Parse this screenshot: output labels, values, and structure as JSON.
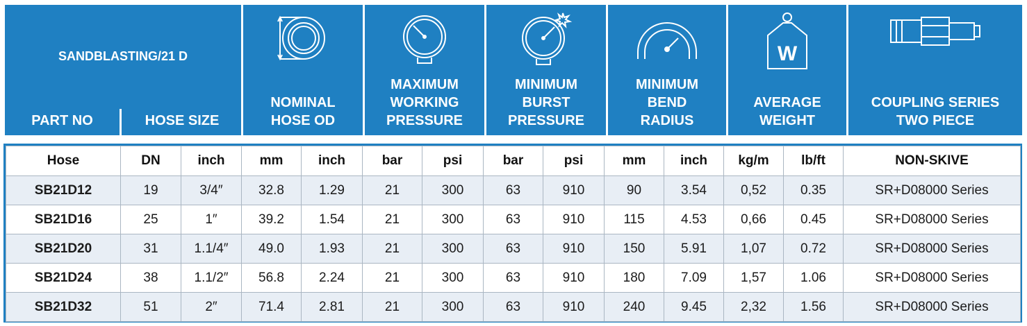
{
  "header": {
    "title": "SANDBLASTING/21 D",
    "part_no_label": "PART NO",
    "hose_size_label": "HOSE SIZE",
    "nominal_od_label": "NOMINAL\nHOSE OD",
    "max_wp_label": "MAXIMUM\nWORKING\nPRESSURE",
    "min_bp_label": "MINIMUM\nBURST\nPRESSURE",
    "min_br_label": "MINIMUM\nBEND\nRADIUS",
    "avg_weight_label": "AVERAGE\nWEIGHT",
    "coupling_label": "COUPLING SERIES\nTWO PIECE",
    "weight_icon_letter": "W"
  },
  "units": [
    "Hose",
    "DN",
    "inch",
    "mm",
    "inch",
    "bar",
    "psi",
    "bar",
    "psi",
    "mm",
    "inch",
    "kg/m",
    "lb/ft",
    "NON-SKIVE"
  ],
  "rows": [
    [
      "SB21D12",
      "19",
      "3/4″",
      "32.8",
      "1.29",
      "21",
      "300",
      "63",
      "910",
      "90",
      "3.54",
      "0,52",
      "0.35",
      "SR+D08000 Series"
    ],
    [
      "SB21D16",
      "25",
      "1″",
      "39.2",
      "1.54",
      "21",
      "300",
      "63",
      "910",
      "115",
      "4.53",
      "0,66",
      "0.45",
      "SR+D08000 Series"
    ],
    [
      "SB21D20",
      "31",
      "1.1/4″",
      "49.0",
      "1.93",
      "21",
      "300",
      "63",
      "910",
      "150",
      "5.91",
      "1,07",
      "0.72",
      "SR+D08000 Series"
    ],
    [
      "SB21D24",
      "38",
      "1.1/2″",
      "56.8",
      "2.24",
      "21",
      "300",
      "63",
      "910",
      "180",
      "7.09",
      "1,57",
      "1.06",
      "SR+D08000 Series"
    ],
    [
      "SB21D32",
      "51",
      "2″",
      "71.4",
      "2.81",
      "21",
      "300",
      "63",
      "910",
      "240",
      "9.45",
      "2,32",
      "1.56",
      "SR+D08000 Series"
    ]
  ],
  "colors": {
    "header_blue": "#1f80c2",
    "row_alt": "#e8eef5",
    "border": "#aab6c2"
  },
  "icons": [
    "hose-od-icon",
    "gauge-icon",
    "burst-gauge-icon",
    "bend-radius-icon",
    "weight-icon",
    "coupling-icon"
  ]
}
